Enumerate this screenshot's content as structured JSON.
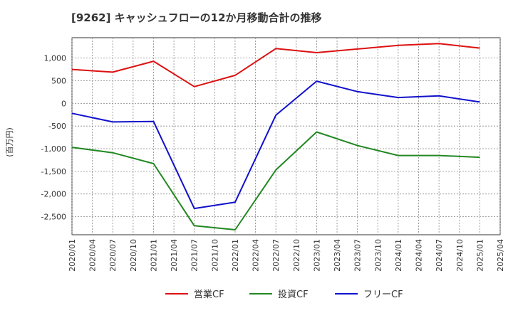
{
  "chart_data": {
    "type": "line",
    "title": "[9262]  キャッシュフローの12か月移動合計の推移",
    "ylabel": "(百万円)",
    "xlabel": "",
    "ylim": [
      -2900,
      1450
    ],
    "yticks": [
      1000,
      500,
      0,
      -500,
      -1000,
      -1500,
      -2000,
      -2500
    ],
    "ytick_labels": [
      "1,000",
      "500",
      "0",
      "-500",
      "-1,000",
      "-1,500",
      "-2,000",
      "-2,500"
    ],
    "x": [
      "2020/01",
      "2020/04",
      "2020/07",
      "2020/10",
      "2021/01",
      "2021/04",
      "2021/07",
      "2021/10",
      "2022/01",
      "2022/04",
      "2022/07",
      "2022/10",
      "2023/01",
      "2023/04",
      "2023/07",
      "2023/10",
      "2024/01",
      "2024/04",
      "2024/07",
      "2024/10",
      "2025/01",
      "2025/04"
    ],
    "series": [
      {
        "name": "営業CF",
        "color": "#dd1111",
        "points": [
          [
            0,
            750
          ],
          [
            2,
            690
          ],
          [
            4,
            930
          ],
          [
            6,
            370
          ],
          [
            8,
            620
          ],
          [
            10,
            1210
          ],
          [
            12,
            1120
          ],
          [
            14,
            1200
          ],
          [
            16,
            1280
          ],
          [
            18,
            1320
          ],
          [
            20,
            1220
          ]
        ]
      },
      {
        "name": "投資CF",
        "color": "#228822",
        "points": [
          [
            0,
            -970
          ],
          [
            2,
            -1090
          ],
          [
            4,
            -1330
          ],
          [
            6,
            -2700
          ],
          [
            8,
            -2790
          ],
          [
            10,
            -1470
          ],
          [
            12,
            -630
          ],
          [
            14,
            -930
          ],
          [
            16,
            -1150
          ],
          [
            18,
            -1150
          ],
          [
            20,
            -1190
          ]
        ]
      },
      {
        "name": "フリーCF",
        "color": "#1111cc",
        "points": [
          [
            0,
            -220
          ],
          [
            2,
            -410
          ],
          [
            4,
            -400
          ],
          [
            6,
            -2320
          ],
          [
            8,
            -2180
          ],
          [
            10,
            -260
          ],
          [
            12,
            490
          ],
          [
            14,
            260
          ],
          [
            16,
            130
          ],
          [
            18,
            165
          ],
          [
            20,
            30
          ]
        ]
      }
    ],
    "legend_position": "bottom-center"
  }
}
